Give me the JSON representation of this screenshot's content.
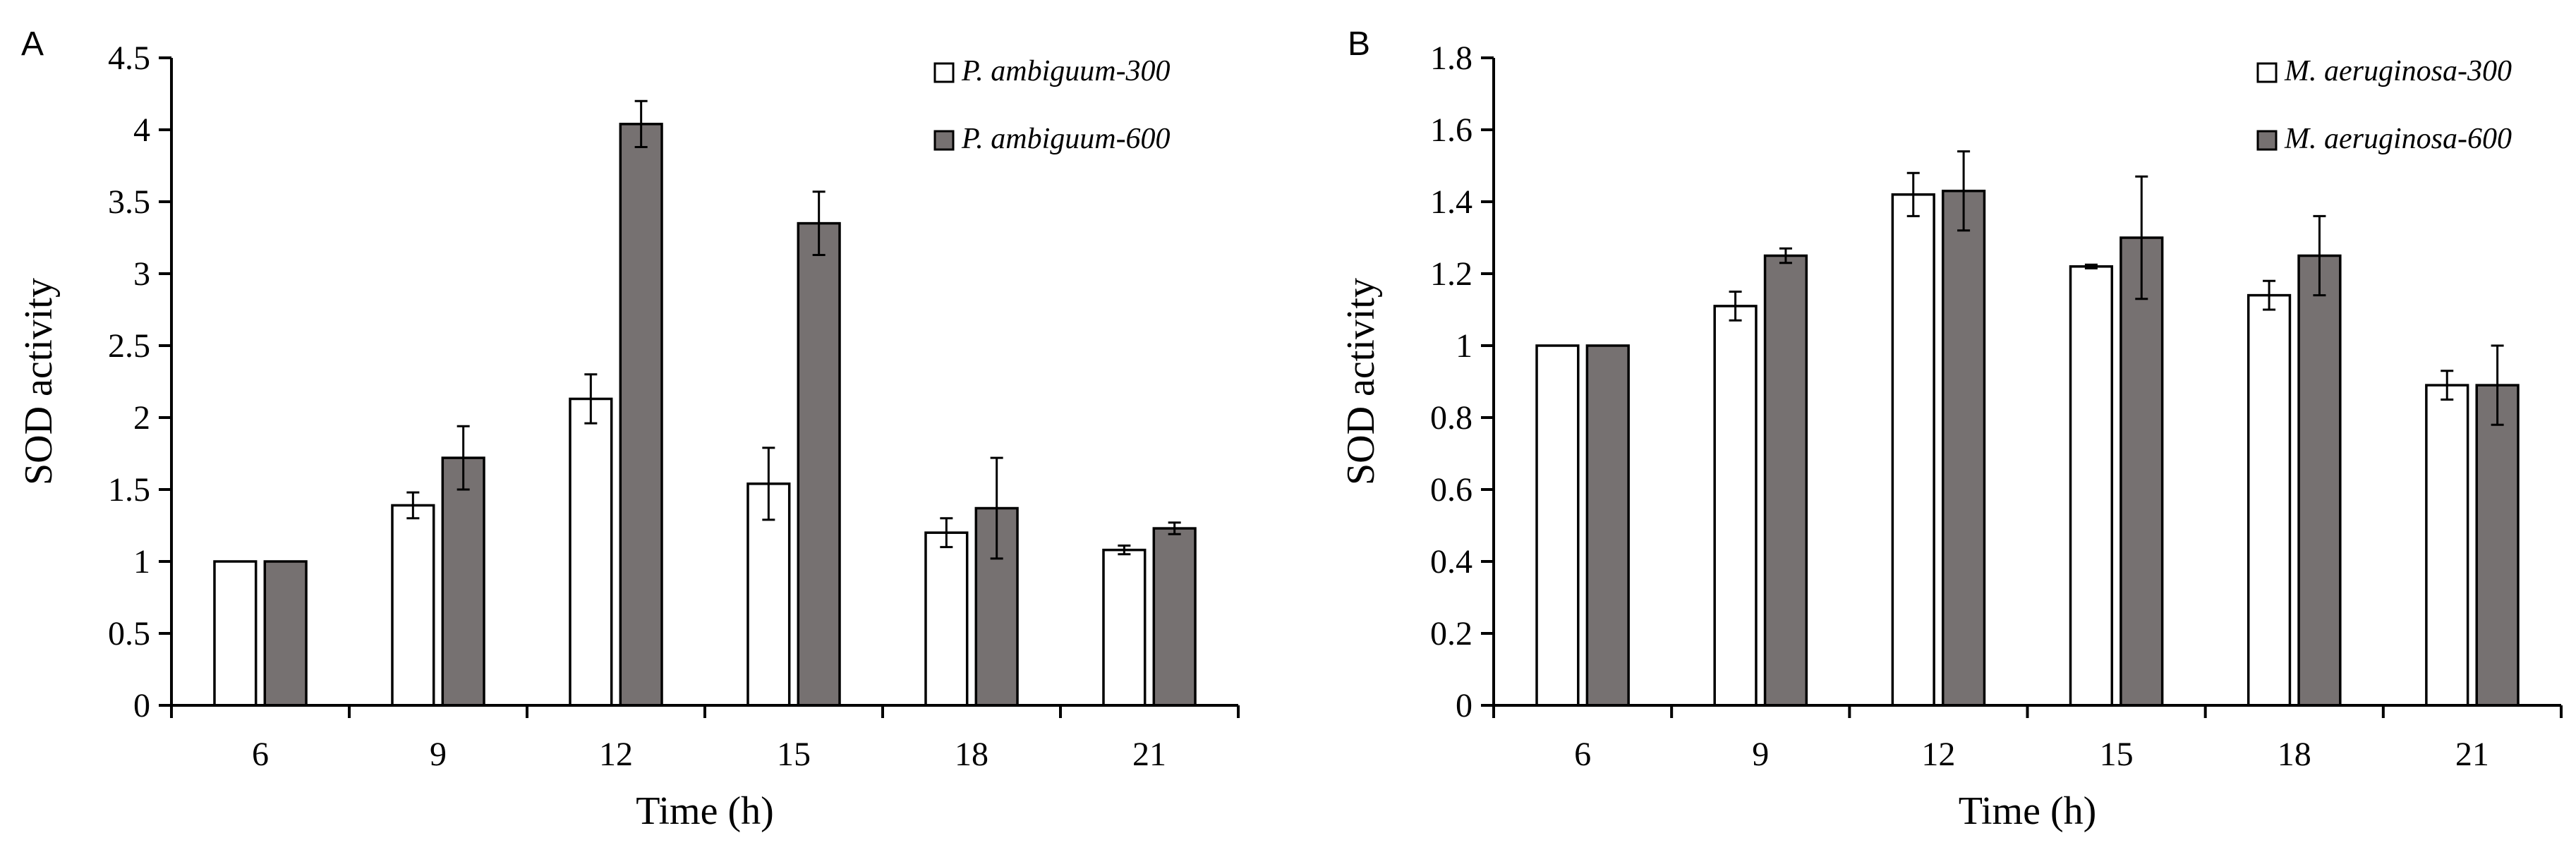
{
  "chart_data": [
    {
      "panel_label": "A",
      "type": "bar",
      "title": "",
      "xlabel": "Time (h)",
      "ylabel": "SOD activity",
      "categories": [
        "6",
        "9",
        "12",
        "15",
        "18",
        "21"
      ],
      "ylim": [
        0,
        4.5
      ],
      "yticks": [
        0,
        0.5,
        1,
        1.5,
        2,
        2.5,
        3,
        3.5,
        4,
        4.5
      ],
      "ytick_labels": [
        "0",
        "0.5",
        "1",
        "1.5",
        "2",
        "2.5",
        "3",
        "3.5",
        "4",
        "4.5"
      ],
      "legend_position": "top-right",
      "grid": false,
      "series": [
        {
          "name": "P. ambiguum-300",
          "color": "#ffffff",
          "values": [
            1.0,
            1.39,
            2.13,
            1.54,
            1.2,
            1.08
          ],
          "errors": [
            0,
            0.09,
            0.17,
            0.25,
            0.1,
            0.03
          ]
        },
        {
          "name": "P. ambiguum-600",
          "color": "#767171",
          "values": [
            1.0,
            1.72,
            4.04,
            3.35,
            1.37,
            1.23
          ],
          "errors": [
            0,
            0.22,
            0.16,
            0.22,
            0.35,
            0.04
          ]
        }
      ]
    },
    {
      "panel_label": "B",
      "type": "bar",
      "title": "",
      "xlabel": "Time (h)",
      "ylabel": "SOD activity",
      "categories": [
        "6",
        "9",
        "12",
        "15",
        "18",
        "21"
      ],
      "ylim": [
        0,
        1.8
      ],
      "yticks": [
        0,
        0.2,
        0.4,
        0.6,
        0.8,
        1,
        1.2,
        1.4,
        1.6,
        1.8
      ],
      "ytick_labels": [
        "0",
        "0.2",
        "0.4",
        "0.6",
        "0.8",
        "1",
        "1.2",
        "1.4",
        "1.6",
        "1.8"
      ],
      "legend_position": "top-right",
      "grid": false,
      "series": [
        {
          "name": "M. aeruginosa-300",
          "color": "#ffffff",
          "values": [
            1.0,
            1.11,
            1.42,
            1.22,
            1.14,
            0.89
          ],
          "errors": [
            0,
            0.04,
            0.06,
            0.005,
            0.04,
            0.04
          ]
        },
        {
          "name": "M. aeruginosa-600",
          "color": "#767171",
          "values": [
            1.0,
            1.25,
            1.43,
            1.3,
            1.25,
            0.89
          ],
          "errors": [
            0,
            0.02,
            0.11,
            0.17,
            0.11,
            0.11
          ]
        }
      ]
    }
  ]
}
